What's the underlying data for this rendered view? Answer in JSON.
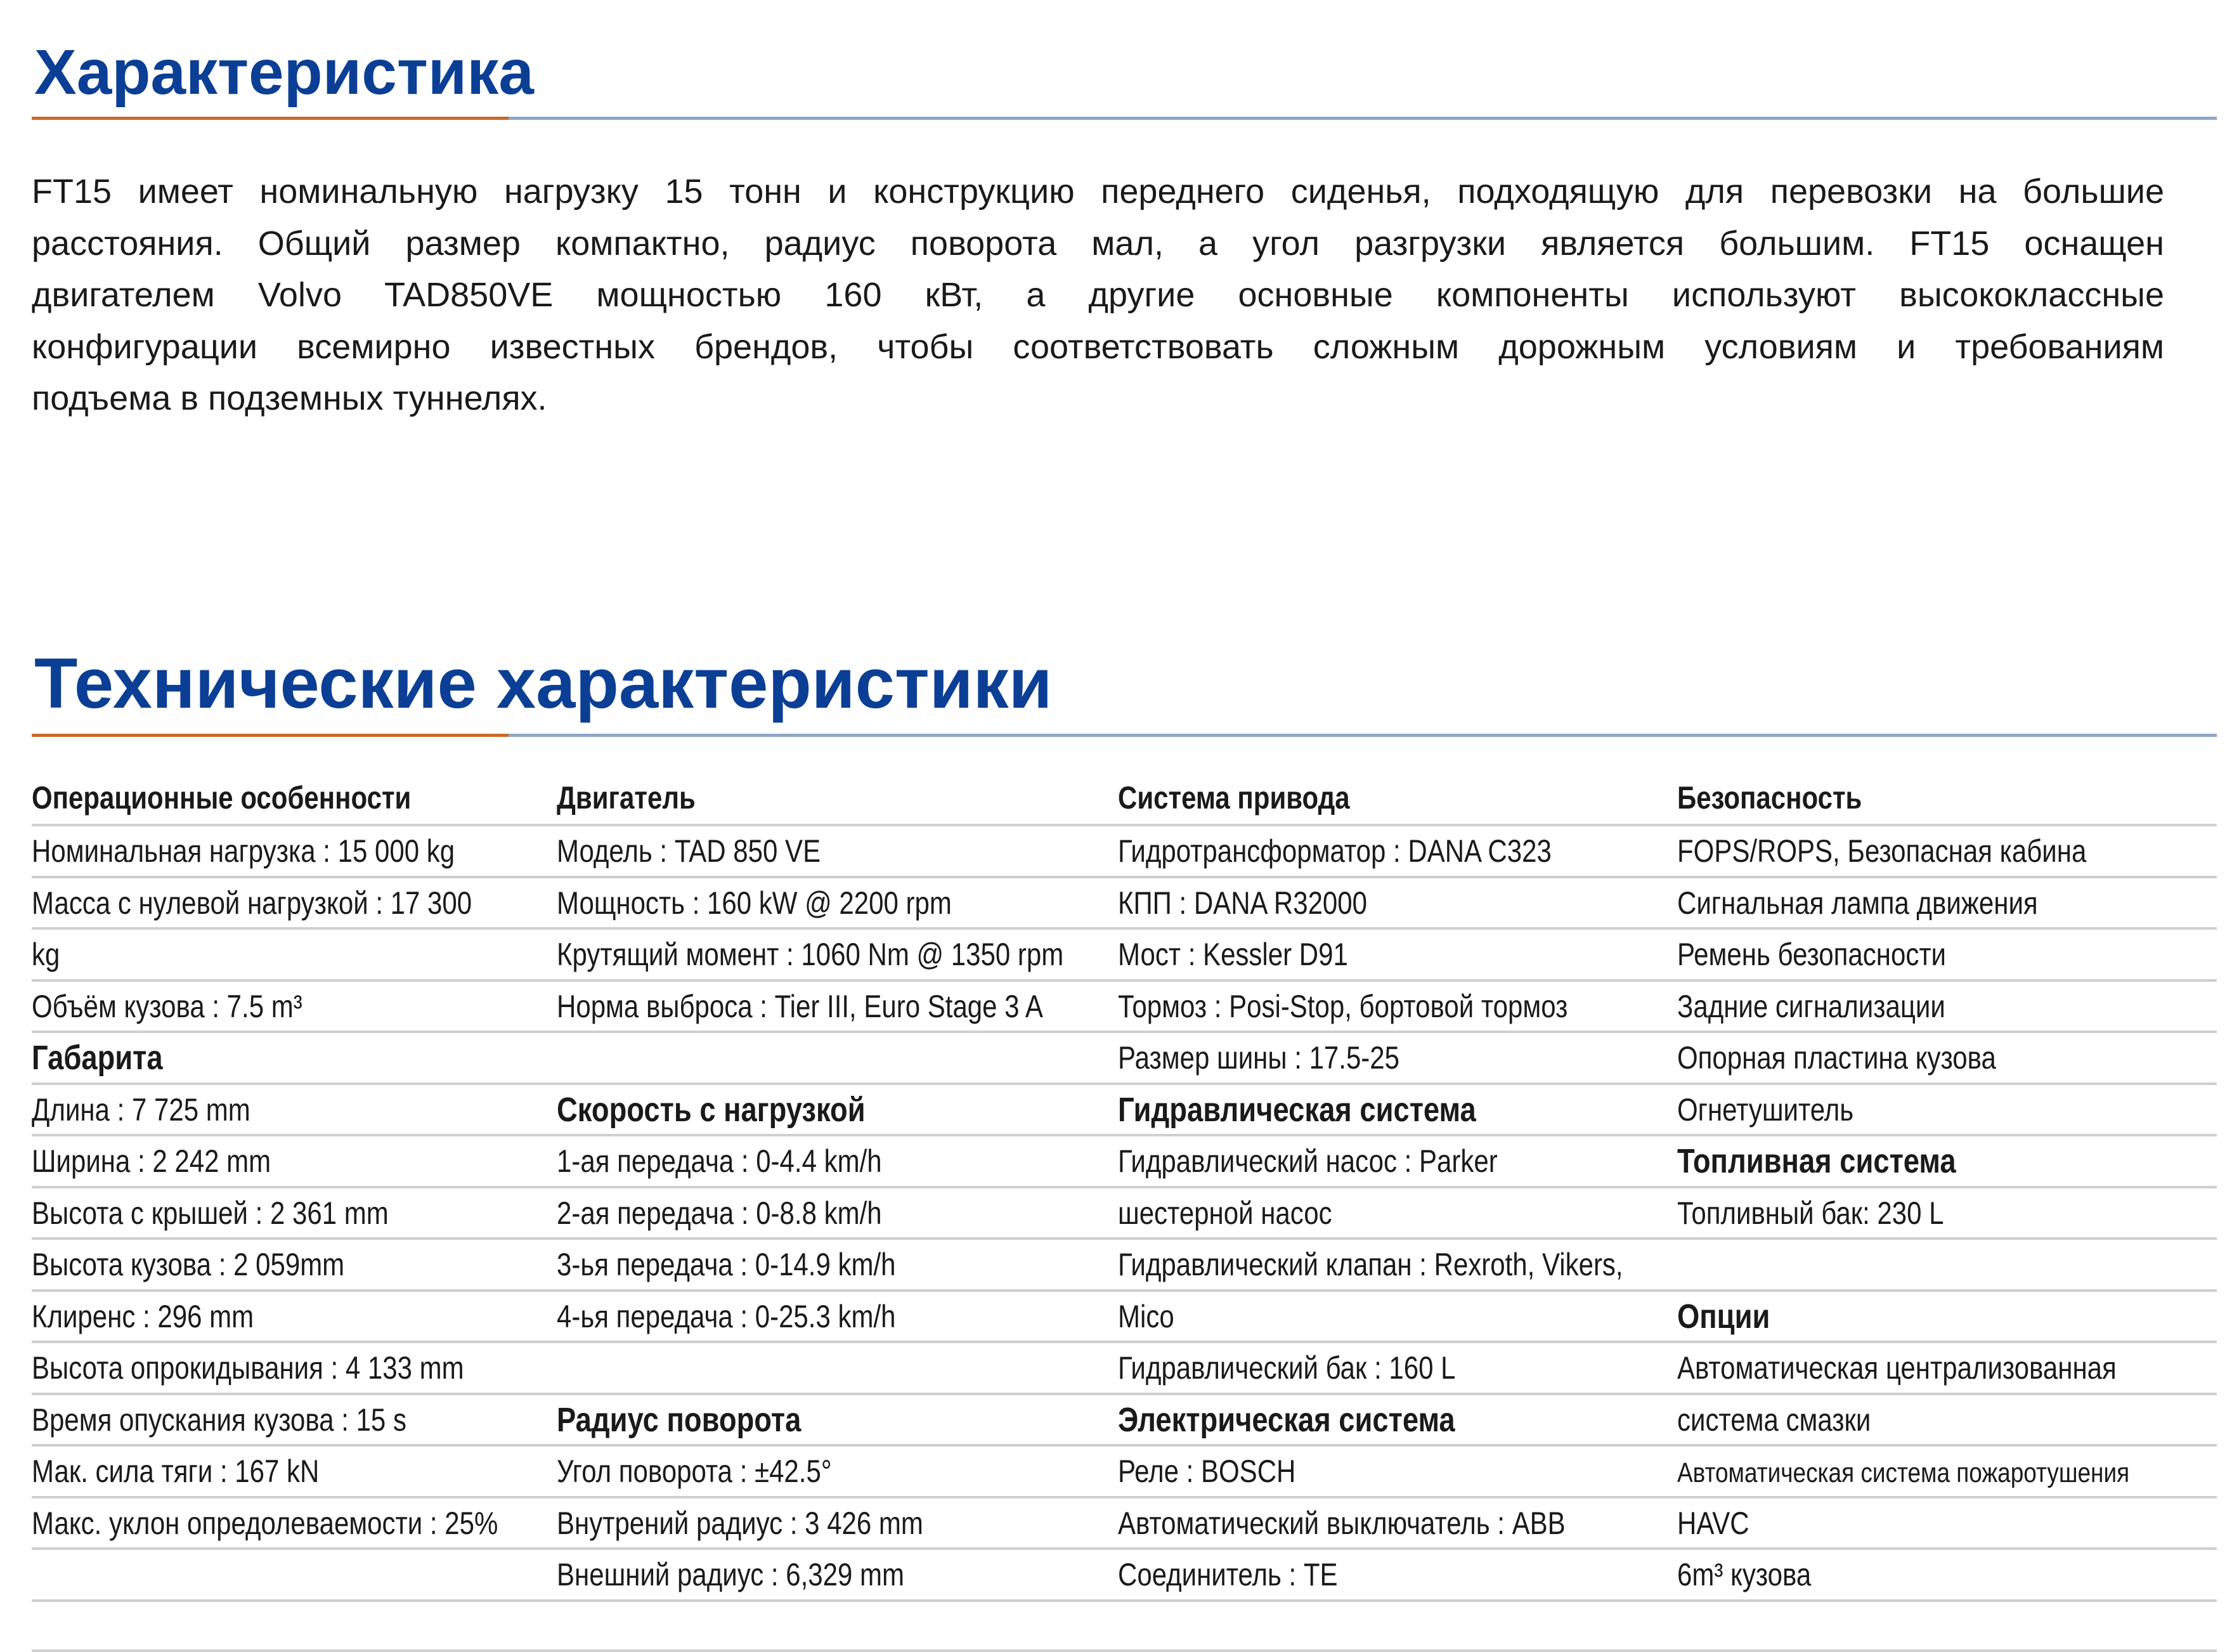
{
  "section1": {
    "title": "Характеристика",
    "paragraph_lines": [
      "FT15 имеет номинальную нагрузку 15 тонн и конструкцию переднего сиденья, подходящую для перевозки на большие",
      "расстояния. Общий размер компактно, радиус поворота мал, а угол разгрузки является большим. FT15 оснащен",
      "двигателем Volvo TAD850VE мощностью 160 кВт, а другие основные компоненты используют высококлассные",
      "конфигурации всемирно известных брендов, чтобы соответствовать сложным дорожным условиям и требованиям",
      "подъема в подземных туннелях."
    ]
  },
  "section2": {
    "title": "Технические характеристики",
    "columns": [
      {
        "header": "Операционные особенности",
        "rows": [
          {
            "text": "Номинальная нагрузка : 15 000 kg"
          },
          {
            "text": "Масса с нулевой нагрузкой : 17 300"
          },
          {
            "text": "kg"
          },
          {
            "text": "Объём кузова : 7.5 m³"
          },
          {
            "text": "Габарита",
            "heading": true
          },
          {
            "text": "Длина : 7 725 mm"
          },
          {
            "text": "Ширина : 2 242 mm"
          },
          {
            "text": "Высота с крышей : 2 361 mm"
          },
          {
            "text": "Высота кузова : 2 059mm"
          },
          {
            "text": "Клиренс : 296 mm"
          },
          {
            "text": "Высота опрокидывания : 4 133 mm"
          },
          {
            "text": "Время опускания кузова : 15 s"
          },
          {
            "text": "Мак. сила тяги : 167 kN"
          },
          {
            "text": "Макс. уклон опредолеваемости : 25%"
          },
          {
            "text": ""
          }
        ]
      },
      {
        "header": "Двигатель",
        "rows": [
          {
            "text": "Модель : TAD 850 VE"
          },
          {
            "text": "Мощность : 160 kW @ 2200 rpm"
          },
          {
            "text": "Крутящий момент : 1060 Nm @ 1350 rpm"
          },
          {
            "text": "Норма выброса : Tier III, Euro Stage 3 A"
          },
          {
            "text": ""
          },
          {
            "text": "Скорость с нагрузкой",
            "heading": true
          },
          {
            "text": "1-ая передача : 0-4.4 km/h"
          },
          {
            "text": "2-ая передача : 0-8.8 km/h"
          },
          {
            "text": "3-ья передача : 0-14.9 km/h"
          },
          {
            "text": "4-ья передача : 0-25.3 km/h"
          },
          {
            "text": ""
          },
          {
            "text": "Радиус поворота",
            "heading": true
          },
          {
            "text": "Угол поворота : ±42.5°"
          },
          {
            "text": "Внутрений радиус : 3 426 mm"
          },
          {
            "text": "Внешний радиус : 6,329 mm"
          }
        ]
      },
      {
        "header": "Система привода",
        "rows": [
          {
            "text": "Гидротрансформатор : DANA C323"
          },
          {
            "text": "КПП : DANA R32000"
          },
          {
            "text": "Мост : Kessler D91"
          },
          {
            "text": "Тормоз : Posi-Stop, бортовой тормоз"
          },
          {
            "text": "Размер шины : 17.5-25"
          },
          {
            "text": "Гидравлическая система",
            "heading": true
          },
          {
            "text": "Гидравлический насос : Parker"
          },
          {
            "text": "шестерной насос"
          },
          {
            "text": "Гидравлический клапан : Rexroth, Vikers,"
          },
          {
            "text": "Mico"
          },
          {
            "text": "Гидравлический бак : 160 L"
          },
          {
            "text": "Электрическая система",
            "heading": true
          },
          {
            "text": "Реле : BOSCH"
          },
          {
            "text": "Автоматический выключатель : ABB"
          },
          {
            "text": "Соединитель : TE"
          }
        ]
      },
      {
        "header": "Безопасность",
        "rows": [
          {
            "text": "FOPS/ROPS, Безопасная кабина"
          },
          {
            "text": "Сигнальная лампа движения"
          },
          {
            "text": "Ремень безопасности"
          },
          {
            "text": "Задние сигнализации"
          },
          {
            "text": "Опорная пластина кузова"
          },
          {
            "text": "Огнетушитель"
          },
          {
            "text": "Топливная система",
            "heading": true
          },
          {
            "text": "Топливный бак:  230 L"
          },
          {
            "text": ""
          },
          {
            "text": "Опции",
            "heading": true
          },
          {
            "text": "Автоматическая централизованная"
          },
          {
            "text": "система смазки"
          },
          {
            "text": "Автоматическая система пожаротушения",
            "small": true
          },
          {
            "text": "HAVC"
          },
          {
            "text": "6m³ кузова"
          }
        ]
      }
    ]
  },
  "colors": {
    "title": "#0b3f95",
    "accent_rule": "#c86a2c",
    "rule": "#8ea6c6",
    "row_line": "#cfcfcf"
  }
}
